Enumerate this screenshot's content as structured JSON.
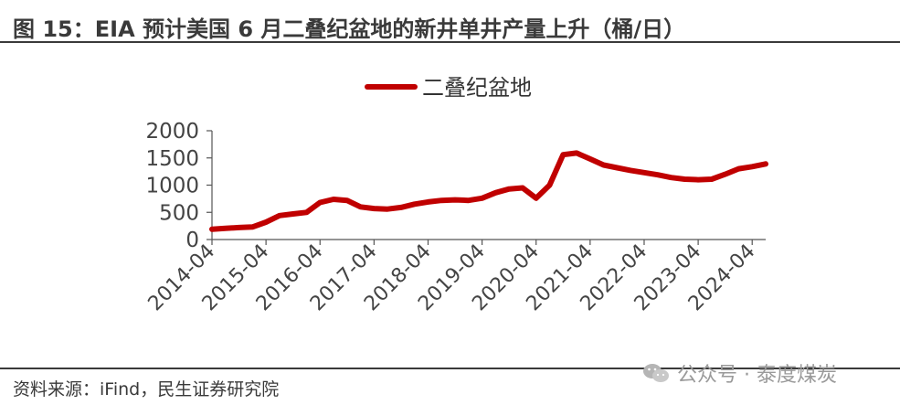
{
  "header": {
    "title": "图 15：EIA 预计美国 6 月二叠纪盆地的新井单井产量上升（桶/日）"
  },
  "footer": {
    "source": "资料来源：iFind，民生证券研究院",
    "watermark": "公众号 · 泰度煤炭"
  },
  "chart_data": {
    "type": "line",
    "title": "",
    "xlabel": "",
    "ylabel": "",
    "ylim": [
      0,
      2000
    ],
    "yticks": [
      "0",
      "500",
      "1000",
      "1500",
      "2000"
    ],
    "xticks": [
      "2014-04",
      "2015-04",
      "2016-04",
      "2017-04",
      "2018-04",
      "2019-04",
      "2020-04",
      "2021-04",
      "2022-04",
      "2023-04",
      "2024-04"
    ],
    "legend_position": "top-center",
    "grid": false,
    "color": "#c00000",
    "series": [
      {
        "name": "二叠纪盆地",
        "x": [
          "2014-04",
          "2014-07",
          "2014-10",
          "2015-01",
          "2015-04",
          "2015-07",
          "2015-10",
          "2016-01",
          "2016-04",
          "2016-07",
          "2016-10",
          "2017-01",
          "2017-04",
          "2017-07",
          "2017-10",
          "2018-01",
          "2018-04",
          "2018-07",
          "2018-10",
          "2019-01",
          "2019-04",
          "2019-07",
          "2019-10",
          "2020-01",
          "2020-04",
          "2020-07",
          "2020-10",
          "2021-01",
          "2021-04",
          "2021-07",
          "2021-10",
          "2022-01",
          "2022-04",
          "2022-07",
          "2022-10",
          "2023-01",
          "2023-04",
          "2023-07",
          "2023-10",
          "2024-01",
          "2024-04",
          "2024-07"
        ],
        "values": [
          190,
          205,
          220,
          230,
          320,
          440,
          470,
          500,
          680,
          740,
          720,
          600,
          570,
          560,
          590,
          650,
          690,
          720,
          730,
          720,
          760,
          860,
          930,
          950,
          760,
          1000,
          1560,
          1590,
          1480,
          1370,
          1320,
          1270,
          1230,
          1190,
          1140,
          1110,
          1100,
          1110,
          1200,
          1300,
          1340,
          1390
        ]
      }
    ]
  }
}
